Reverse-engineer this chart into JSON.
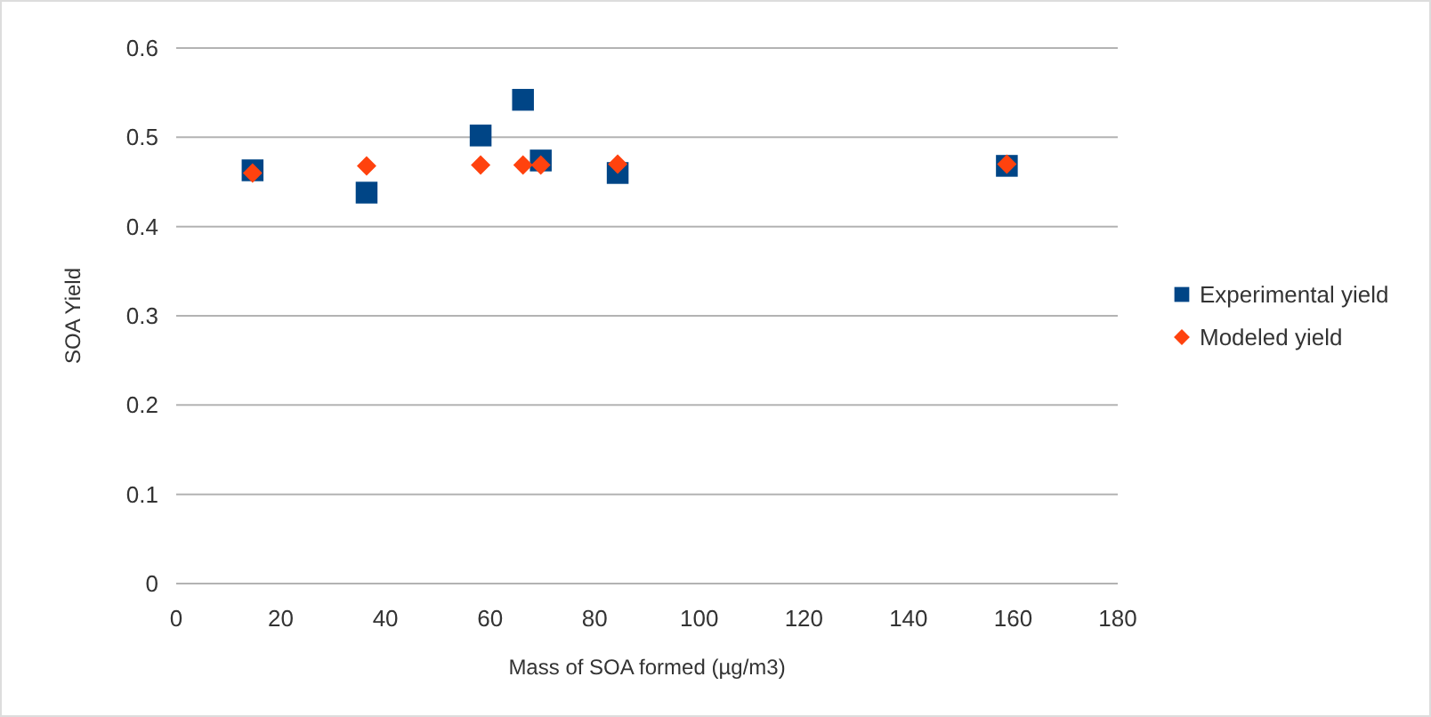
{
  "chart_data": {
    "type": "scatter",
    "xlabel": "Mass of SOA formed (µg/m3)",
    "ylabel": "SOA Yield",
    "xlim": [
      0,
      180
    ],
    "xticks": [
      0,
      20,
      40,
      60,
      80,
      100,
      120,
      140,
      160,
      180
    ],
    "ylim": [
      0,
      0.6
    ],
    "yticks": [
      0,
      0.1,
      0.2,
      0.3,
      0.4,
      0.5,
      0.6
    ],
    "grid": "y",
    "legend": "right",
    "series": [
      {
        "name": "Experimental yield",
        "color": "#004586",
        "marker": "square",
        "x": [
          14.6,
          36.4,
          58.2,
          66.3,
          69.7,
          84.4,
          158.8
        ],
        "values": [
          0.463,
          0.438,
          0.502,
          0.542,
          0.474,
          0.46,
          0.468
        ]
      },
      {
        "name": "Modeled yield",
        "color": "#ff420e",
        "marker": "diamond",
        "x": [
          14.6,
          36.4,
          58.2,
          66.3,
          69.7,
          84.4,
          158.8
        ],
        "values": [
          0.46,
          0.468,
          0.469,
          0.469,
          0.469,
          0.47,
          0.47
        ]
      }
    ]
  }
}
